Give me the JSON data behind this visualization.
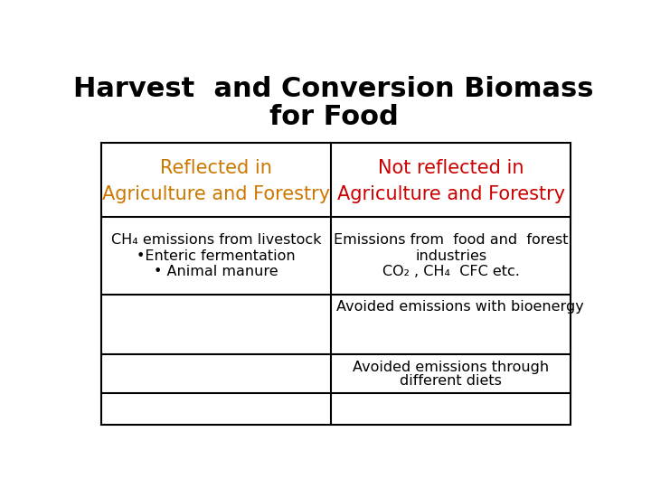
{
  "title_line1": "Harvest  and Conversion Biomass",
  "title_line2": "for Food",
  "title_fontsize": 22,
  "title_color": "#000000",
  "title_fontweight": "bold",
  "col1_header_line1": "Reflected in",
  "col1_header_line2": "Agriculture and Forestry",
  "col1_header_color": "#CC7700",
  "col2_header_line1": "Not reflected in",
  "col2_header_line2": "Agriculture and Forestry",
  "col2_header_color": "#CC0000",
  "header_fontsize": 15,
  "body_fontsize": 11.5,
  "row1_col1_lines": [
    "CH₄ emissions from livestock",
    "•Enteric fermentation",
    "• Animal manure"
  ],
  "row1_col1_align": [
    "center",
    "center",
    "center"
  ],
  "row1_col2_lines": [
    "Emissions from  food and  forest",
    "industries",
    "CO₂ , CH₄  CFC etc."
  ],
  "row2_col2": "Avoided emissions with bioenergy",
  "row3_col2_line1": "Avoided emissions through",
  "row3_col2_line2": "different diets",
  "bg_color": "#ffffff",
  "border_color": "#000000",
  "border_lw": 1.5
}
